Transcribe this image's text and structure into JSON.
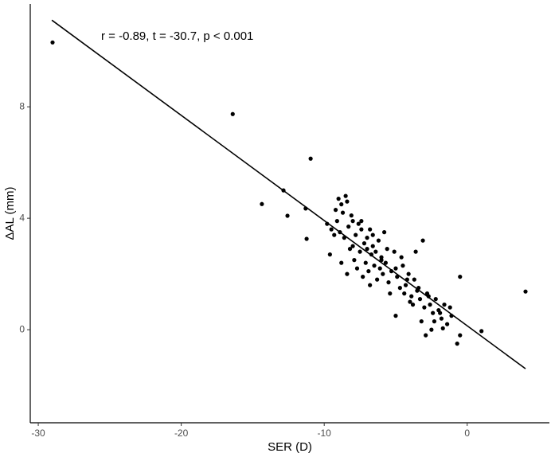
{
  "chart_data": {
    "type": "scatter",
    "annotation": "r = -0.89, t = -30.7, p < 0.001",
    "xlabel": "SER (D)",
    "ylabel": "ΔAL (mm)",
    "x": [
      -29.0,
      -16.4,
      -10.95,
      -12.85,
      -14.36,
      -12.57,
      -11.3,
      -11.23,
      -9.8,
      -9.5,
      -9.2,
      -9.0,
      -8.8,
      -8.5,
      -8.4,
      -8.7,
      -9.1,
      -8.9,
      -8.6,
      -8.3,
      -8.1,
      -8.0,
      -7.8,
      -7.6,
      -7.4,
      -7.2,
      -7.0,
      -6.8,
      -6.6,
      -6.4,
      -6.2,
      -6.0,
      -5.8,
      -5.6,
      -9.6,
      -8.4,
      -8.2,
      -7.9,
      -7.7,
      -7.5,
      -7.3,
      -7.1,
      -6.9,
      -6.7,
      -6.5,
      -6.3,
      -6.1,
      -5.9,
      -5.7,
      -5.5,
      -5.3,
      -5.1,
      -4.9,
      -4.7,
      -4.5,
      -4.3,
      -4.1,
      -3.9,
      -3.7,
      -3.5,
      -3.3,
      -3.1,
      -3.0,
      -2.8,
      -2.6,
      -2.4,
      -2.2,
      -2.0,
      -1.8,
      -1.6,
      -1.4,
      -1.2,
      -2.9,
      -3.2,
      -2.5,
      -1.7,
      -4.0,
      -4.4,
      -5.0,
      -3.6,
      -9.3,
      -8.0,
      -7.0,
      -6.0,
      -5.0,
      -4.2,
      -3.4,
      -2.7,
      -1.9,
      -1.1,
      -6.8,
      -5.4,
      -4.6,
      -8.8,
      -7.4,
      -6.6,
      -2.3,
      -3.8,
      -0.5,
      -0.5,
      -0.7,
      1.0,
      4.08
    ],
    "y": [
      10.31,
      7.74,
      6.14,
      5.0,
      4.51,
      4.09,
      4.35,
      3.26,
      3.8,
      3.6,
      4.3,
      4.7,
      4.5,
      4.8,
      4.6,
      4.2,
      3.9,
      3.5,
      3.3,
      3.7,
      4.1,
      3.9,
      3.4,
      3.8,
      3.6,
      3.1,
      3.3,
      3.6,
      3.0,
      2.8,
      3.2,
      2.6,
      3.5,
      2.9,
      2.7,
      2.0,
      2.9,
      2.5,
      2.2,
      2.8,
      1.9,
      2.4,
      2.1,
      2.7,
      2.3,
      1.8,
      2.2,
      2.0,
      2.4,
      1.7,
      2.1,
      2.8,
      1.9,
      1.5,
      2.3,
      1.6,
      2.0,
      1.2,
      1.8,
      1.4,
      1.1,
      3.2,
      0.8,
      1.3,
      0.9,
      0.6,
      1.1,
      0.7,
      0.4,
      0.9,
      0.2,
      0.8,
      -0.2,
      0.3,
      0.0,
      0.05,
      1.0,
      1.3,
      0.5,
      2.8,
      3.4,
      3.0,
      2.9,
      2.5,
      2.2,
      1.8,
      1.5,
      1.2,
      0.6,
      0.5,
      1.6,
      1.3,
      2.6,
      2.4,
      3.9,
      3.4,
      0.3,
      0.9,
      1.9,
      -0.2,
      -0.5,
      -0.05,
      1.37
    ],
    "color": "#000000",
    "fit": {
      "x": [
        -29.05,
        4.08
      ],
      "y": [
        11.11,
        -1.4
      ]
    },
    "xlim": [
      -30.56,
      5.75
    ],
    "ylim": [
      -3.34,
      11.69
    ],
    "xticks": [
      -30,
      -20,
      -10,
      0
    ],
    "yticks": [
      0,
      4,
      8
    ],
    "grid": false
  }
}
